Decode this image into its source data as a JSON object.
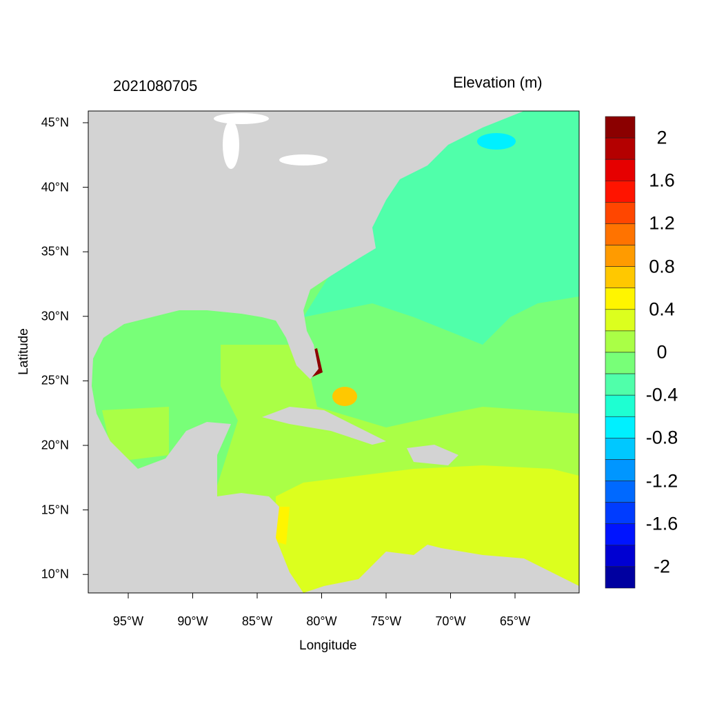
{
  "title_left": "2021080705",
  "title_right": "Elevation (m)",
  "xlabel": "Longitude",
  "ylabel": "Latitude",
  "x_ticks": [
    "95°W",
    "90°W",
    "85°W",
    "80°W",
    "75°W",
    "70°W",
    "65°W"
  ],
  "y_ticks": [
    "45°N",
    "40°N",
    "35°N",
    "30°N",
    "25°N",
    "20°N",
    "15°N",
    "10°N"
  ],
  "map_extent": {
    "lon": [
      -98.1,
      -60.0
    ],
    "lat": [
      8.6,
      45.9
    ]
  },
  "land_color": "#D3D3D3",
  "colorbar": {
    "labels": [
      "2",
      "1.6",
      "1.2",
      "0.8",
      "0.4",
      "0",
      "-0.4",
      "-0.8",
      "-1.2",
      "-1.6",
      "-2"
    ],
    "colors": [
      "#8B0000",
      "#B40000",
      "#E60000",
      "#FF1400",
      "#FF4600",
      "#FF7300",
      "#FF9B00",
      "#FFC800",
      "#FFF500",
      "#DCFF1E",
      "#AAFF46",
      "#78FF78",
      "#50FFAA",
      "#1EFFD2",
      "#00F0FF",
      "#00C8FF",
      "#0096FF",
      "#0069FF",
      "#003CFF",
      "#0014FF",
      "#0000D2",
      "#0000A0"
    ]
  }
}
